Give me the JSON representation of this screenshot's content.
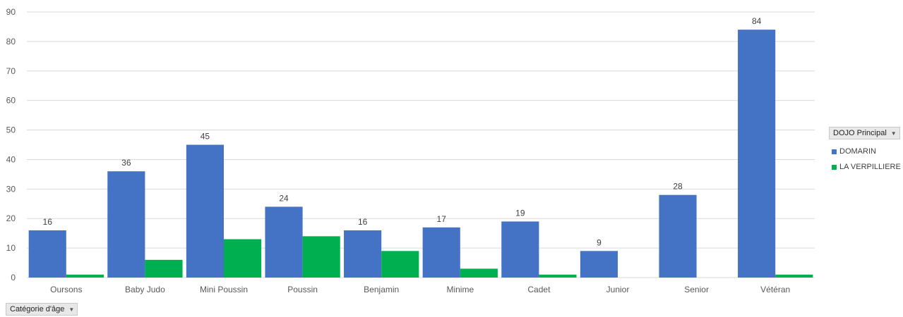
{
  "chart_data": {
    "type": "bar",
    "categories": [
      "Oursons",
      "Baby Judo",
      "Mini Poussin",
      "Poussin",
      "Benjamin",
      "Minime",
      "Cadet",
      "Junior",
      "Senior",
      "Vétéran"
    ],
    "series": [
      {
        "name": "DOMARIN",
        "color": "#4472c4",
        "values": [
          16,
          36,
          45,
          24,
          16,
          17,
          19,
          9,
          28,
          84
        ],
        "show_labels": true
      },
      {
        "name": "LA VERPILLIERE",
        "color": "#00b050",
        "values": [
          1,
          6,
          13,
          14,
          9,
          3,
          1,
          0,
          0,
          1
        ],
        "show_labels": false
      }
    ],
    "ylim": [
      0,
      90
    ],
    "yticks": [
      0,
      10,
      20,
      30,
      40,
      50,
      60,
      70,
      80,
      90
    ],
    "grid": true,
    "legend_placement": "right"
  },
  "legend": {
    "title": "DOJO Principal",
    "items": [
      {
        "label": "DOMARIN",
        "color": "#4472c4"
      },
      {
        "label": "LA VERPILLIERE",
        "color": "#00b050"
      }
    ]
  },
  "axis_filter": {
    "label": "Catégorie d'âge"
  },
  "icons": {
    "dropdown": "▼"
  }
}
